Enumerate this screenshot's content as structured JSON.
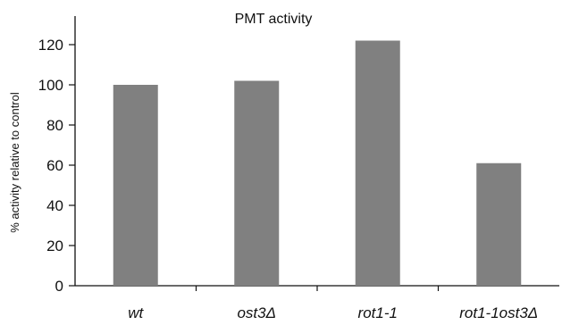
{
  "chart_data": {
    "type": "bar",
    "title": "PMT activity",
    "xlabel": "",
    "ylabel": "% activity relative to control",
    "categories": [
      "wt",
      "ost3Δ",
      "rot1-1",
      "rot1-1ost3Δ"
    ],
    "values": [
      100,
      102,
      122,
      61
    ],
    "yticks": [
      0,
      20,
      40,
      60,
      80,
      100,
      120
    ],
    "ylim": [
      0,
      130
    ],
    "grid": false,
    "legend": "none",
    "bar_color": "#808080",
    "axis_color": "#111111"
  }
}
